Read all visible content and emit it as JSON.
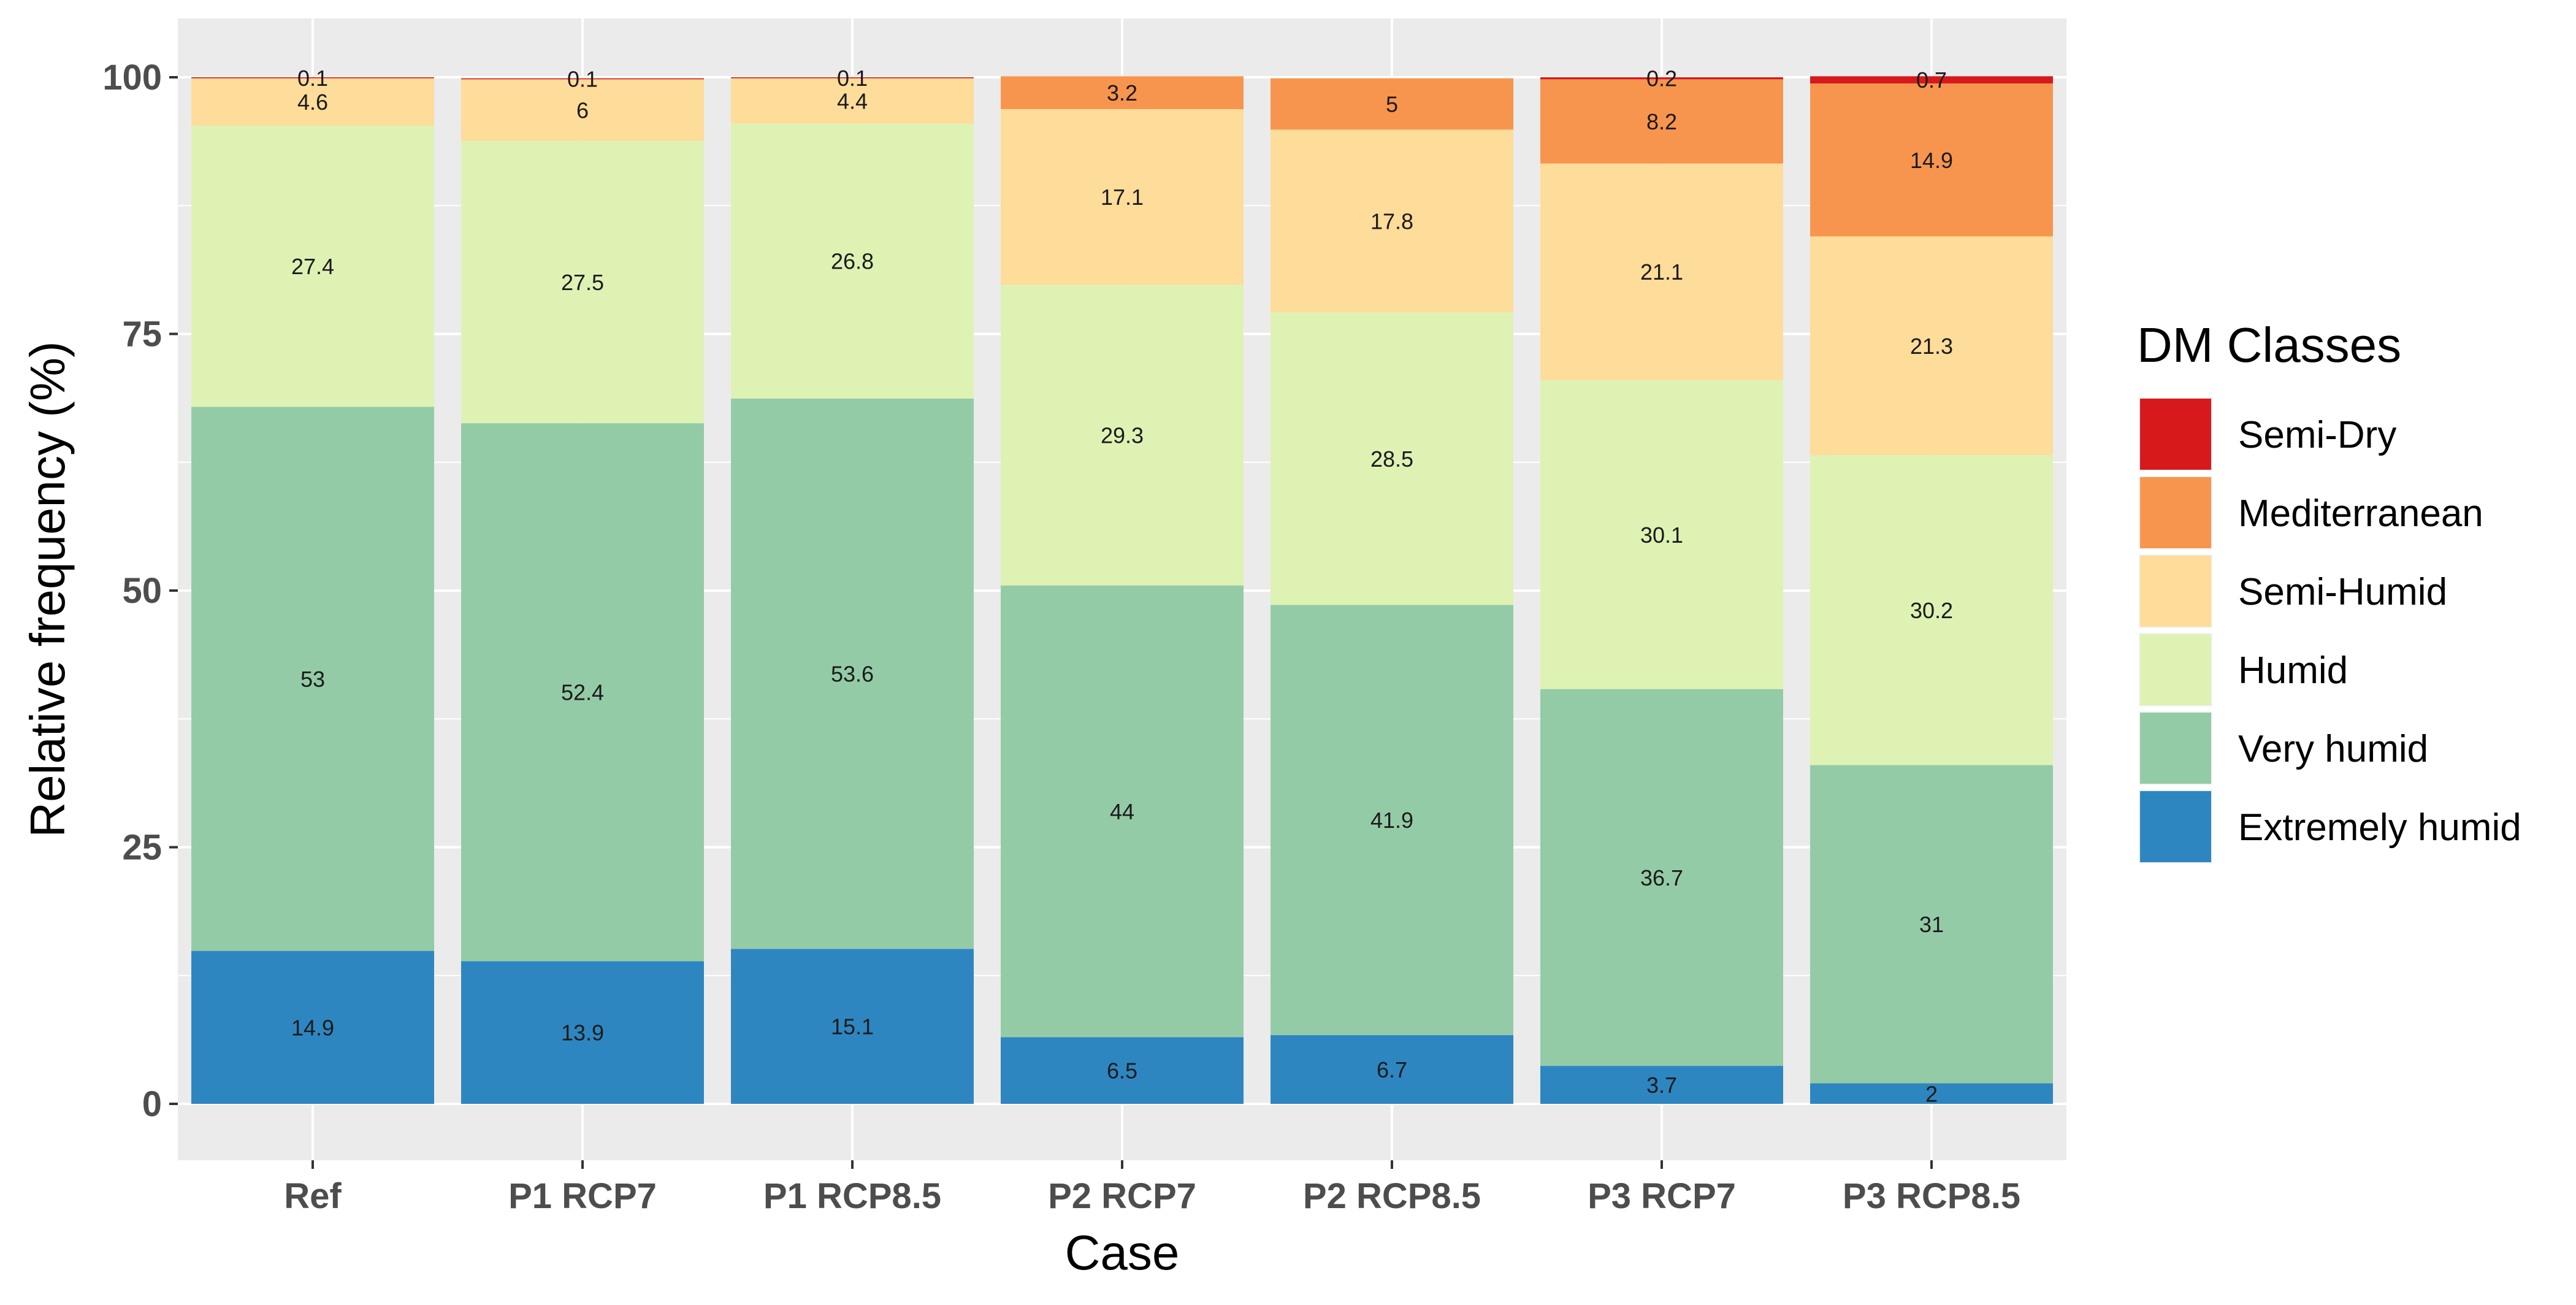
{
  "chart_data": {
    "type": "bar",
    "stacked": true,
    "title": "",
    "xlabel": "Case",
    "ylabel": "Relative frequency (%)",
    "ylim": [
      0,
      100
    ],
    "yticks": [
      0,
      25,
      50,
      75,
      100
    ],
    "ytick_labels": [
      "0",
      "25",
      "50",
      "75",
      "100"
    ],
    "grid": true,
    "legend_position": "right",
    "legend_title": "DM Classes",
    "categories": [
      "Ref",
      "P1 RCP7",
      "P1 RCP8.5",
      "P2 RCP7",
      "P2 RCP8.5",
      "P3 RCP7",
      "P3 RCP8.5"
    ],
    "series": [
      {
        "name": "Extremely humid",
        "color": "#2e86c1",
        "values": [
          14.9,
          13.9,
          15.1,
          6.5,
          6.7,
          3.7,
          2
        ],
        "labels": [
          "14.9",
          "13.9",
          "15.1",
          "6.5",
          "6.7",
          "3.7",
          "2"
        ]
      },
      {
        "name": "Very humid",
        "color": "#94cba7",
        "values": [
          53,
          52.4,
          53.6,
          44,
          41.9,
          36.7,
          31
        ],
        "labels": [
          "53",
          "52.4",
          "53.6",
          "44",
          "41.9",
          "36.7",
          "31"
        ]
      },
      {
        "name": "Humid",
        "color": "#def2b4",
        "values": [
          27.4,
          27.5,
          26.8,
          29.3,
          28.5,
          30.1,
          30.2
        ],
        "labels": [
          "27.4",
          "27.5",
          "26.8",
          "29.3",
          "28.5",
          "30.1",
          "30.2"
        ]
      },
      {
        "name": "Semi-Humid",
        "color": "#fedc99",
        "values": [
          4.6,
          6,
          4.4,
          17.1,
          17.8,
          21.1,
          21.3
        ],
        "labels": [
          "4.6",
          "6",
          "4.4",
          "17.1",
          "17.8",
          "21.1",
          "21.3"
        ]
      },
      {
        "name": "Mediterranean",
        "color": "#f7954f",
        "values": [
          0,
          0,
          0,
          3.2,
          5,
          8.2,
          14.9
        ],
        "labels": [
          "",
          "",
          "",
          "3.2",
          "5",
          "8.2",
          "14.9"
        ]
      },
      {
        "name": "Semi-Dry",
        "color": "#d7191c",
        "values": [
          0.1,
          0.1,
          0.1,
          0,
          0,
          0.2,
          0.7
        ],
        "labels": [
          "0.1",
          "0.1",
          "0.1",
          "",
          "",
          "0.2",
          "0.7"
        ]
      }
    ],
    "legend_order": [
      "Semi-Dry",
      "Mediterranean",
      "Semi-Humid",
      "Humid",
      "Very humid",
      "Extremely humid"
    ]
  }
}
